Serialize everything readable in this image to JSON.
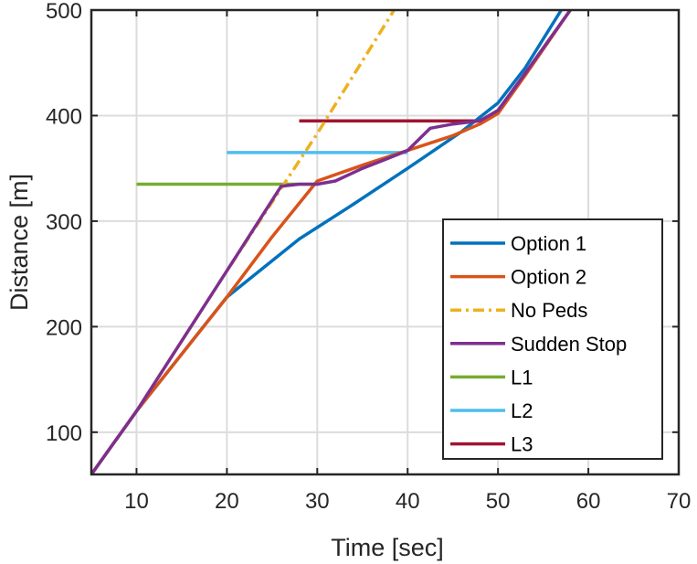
{
  "chart_data": {
    "type": "line",
    "title": "",
    "xlabel": "Time [sec]",
    "ylabel": "Distance [m]",
    "xlim": [
      5,
      70
    ],
    "ylim": [
      60,
      500
    ],
    "xticks": [
      10,
      20,
      30,
      40,
      50,
      60,
      70
    ],
    "yticks": [
      100,
      200,
      300,
      400,
      500
    ],
    "grid": true,
    "legend_position": "bottom-right",
    "series": [
      {
        "name": "Option 1",
        "color": "#0072bd",
        "style": "solid",
        "x": [
          5,
          10,
          20,
          28,
          34,
          40,
          46,
          50,
          53,
          57
        ],
        "y": [
          60,
          120,
          228,
          283,
          316,
          350,
          385,
          412,
          445,
          500
        ]
      },
      {
        "name": "Option 2",
        "color": "#d95319",
        "style": "solid",
        "x": [
          5,
          10,
          20,
          25,
          30,
          35,
          40,
          45,
          48,
          50,
          53,
          58
        ],
        "y": [
          60,
          120,
          228,
          285,
          338,
          353,
          367,
          381,
          392,
          402,
          438,
          500
        ]
      },
      {
        "name": "No Peds",
        "color": "#edb120",
        "style": "dashdot",
        "x": [
          5,
          10,
          20,
          30,
          38.5
        ],
        "y": [
          60,
          120,
          253,
          383,
          500
        ]
      },
      {
        "name": "Sudden Stop",
        "color": "#7e2f8e",
        "style": "solid",
        "x": [
          5,
          10,
          20,
          26,
          28,
          30,
          32,
          35,
          38,
          40,
          42.5,
          45,
          48,
          50,
          53,
          58
        ],
        "y": [
          60,
          120,
          253,
          333,
          335,
          335,
          338,
          350,
          360,
          367,
          388,
          392,
          395,
          405,
          440,
          500
        ]
      },
      {
        "name": "L1",
        "color": "#77ac30",
        "style": "solid",
        "x": [
          10,
          30
        ],
        "y": [
          335,
          335
        ]
      },
      {
        "name": "L2",
        "color": "#4dbeee",
        "style": "solid",
        "x": [
          20,
          40
        ],
        "y": [
          365,
          365
        ]
      },
      {
        "name": "L3",
        "color": "#a2142f",
        "style": "solid",
        "x": [
          28,
          48
        ],
        "y": [
          395,
          395
        ]
      }
    ]
  }
}
